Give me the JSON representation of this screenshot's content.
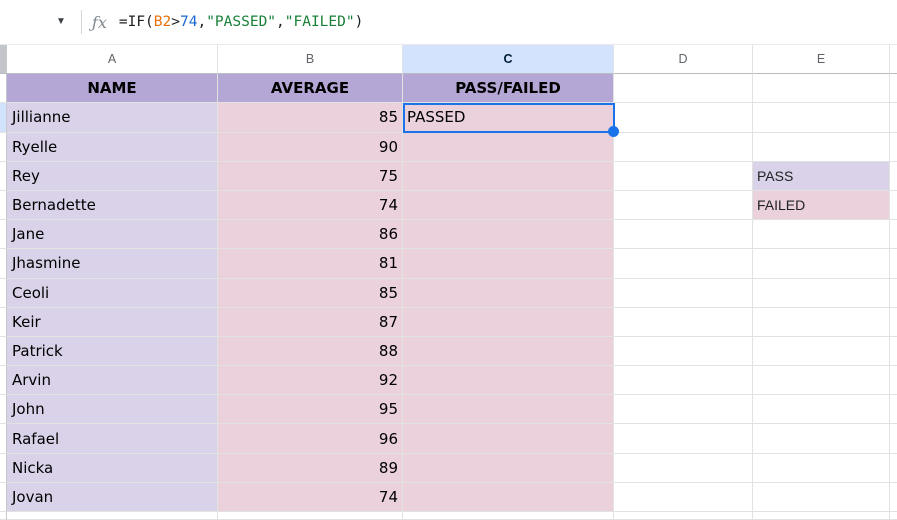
{
  "formula_bar": {
    "name_box_arrow": "▼",
    "fx_label": "ƒx",
    "formula_tokens": [
      {
        "text": "=IF(",
        "color": "#202124"
      },
      {
        "text": "B2",
        "color": "#e8710a"
      },
      {
        "text": ">",
        "color": "#202124"
      },
      {
        "text": "74",
        "color": "#1967d2"
      },
      {
        "text": ",",
        "color": "#202124"
      },
      {
        "text": "\"PASSED\"",
        "color": "#188038"
      },
      {
        "text": ",",
        "color": "#202124"
      },
      {
        "text": "\"FAILED\"",
        "color": "#188038"
      },
      {
        "text": ")",
        "color": "#202124"
      }
    ]
  },
  "grid": {
    "active_column": "C",
    "active_cell": "C2",
    "columns": [
      {
        "letter": "A"
      },
      {
        "letter": "B"
      },
      {
        "letter": "C"
      },
      {
        "letter": "D"
      },
      {
        "letter": "E"
      }
    ],
    "header_row": {
      "name": "NAME",
      "average": "AVERAGE",
      "pass": "PASS/FAILED"
    },
    "rows": [
      {
        "name": "Jillianne",
        "average": "85",
        "pass": "PASSED",
        "e": "",
        "e_fill": ""
      },
      {
        "name": "Ryelle",
        "average": "90",
        "pass": "",
        "e": "",
        "e_fill": ""
      },
      {
        "name": "Rey",
        "average": "75",
        "pass": "",
        "e": "PASS",
        "e_fill": "purple"
      },
      {
        "name": "Bernadette",
        "average": "74",
        "pass": "",
        "e": "FAILED",
        "e_fill": "pink"
      },
      {
        "name": "Jane",
        "average": "86",
        "pass": "",
        "e": "",
        "e_fill": ""
      },
      {
        "name": "Jhasmine",
        "average": "81",
        "pass": "",
        "e": "",
        "e_fill": ""
      },
      {
        "name": "Ceoli",
        "average": "85",
        "pass": "",
        "e": "",
        "e_fill": ""
      },
      {
        "name": "Keir",
        "average": "87",
        "pass": "",
        "e": "",
        "e_fill": ""
      },
      {
        "name": "Patrick",
        "average": "88",
        "pass": "",
        "e": "",
        "e_fill": ""
      },
      {
        "name": "Arvin",
        "average": "92",
        "pass": "",
        "e": "",
        "e_fill": ""
      },
      {
        "name": "John",
        "average": "95",
        "pass": "",
        "e": "",
        "e_fill": ""
      },
      {
        "name": "Rafael",
        "average": "96",
        "pass": "",
        "e": "",
        "e_fill": ""
      },
      {
        "name": "Nicka",
        "average": "89",
        "pass": "",
        "e": "",
        "e_fill": ""
      },
      {
        "name": "Jovan",
        "average": "74",
        "pass": "",
        "e": "",
        "e_fill": ""
      }
    ]
  },
  "colors": {
    "header_fill": "#b4a7d6",
    "col_a_fill": "#d9d2e9",
    "col_bc_fill": "#ead1dc",
    "active_header_fill": "#d3e3fd",
    "selection_blue": "#1a73e8"
  }
}
